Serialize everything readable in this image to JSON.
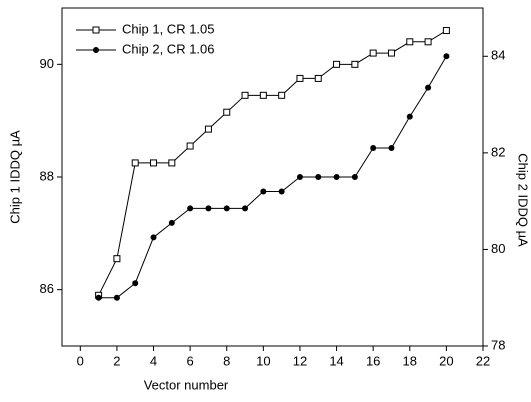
{
  "chart_data": {
    "type": "line",
    "x_label": "Vector number",
    "y_label": "Chip 1 IDDQ µA",
    "y2_label": "Chip 2 IDDQ µA",
    "x": [
      1,
      2,
      3,
      4,
      5,
      6,
      7,
      8,
      9,
      10,
      11,
      12,
      13,
      14,
      15,
      16,
      17,
      18,
      19,
      20
    ],
    "series": [
      {
        "name": "Chip 1, CR 1.05",
        "color": "#000000",
        "marker": "square-open",
        "axis": "y",
        "values": [
          85.9,
          86.55,
          88.25,
          88.25,
          88.25,
          88.55,
          88.85,
          89.15,
          89.45,
          89.45,
          89.45,
          89.75,
          89.75,
          90.0,
          90.0,
          90.2,
          90.2,
          90.4,
          90.4,
          90.6
        ]
      },
      {
        "name": "Chip 2, CR 1.06",
        "color": "#000000",
        "marker": "circle-filled",
        "axis": "y2",
        "values": [
          79.0,
          79.0,
          79.3,
          80.25,
          80.55,
          80.85,
          80.85,
          80.85,
          80.85,
          81.2,
          81.2,
          81.5,
          81.5,
          81.5,
          81.5,
          82.1,
          82.1,
          82.75,
          83.35,
          84.0
        ]
      }
    ],
    "xlim": [
      -1,
      22
    ],
    "xticks": [
      0,
      2,
      4,
      6,
      8,
      10,
      12,
      14,
      16,
      18,
      20,
      22
    ],
    "ylim": [
      85,
      91
    ],
    "yticks": [
      86,
      88,
      90
    ],
    "y2lim": [
      78,
      85
    ],
    "y2ticks": [
      78,
      80,
      82,
      84
    ],
    "legend": "upper-left"
  }
}
